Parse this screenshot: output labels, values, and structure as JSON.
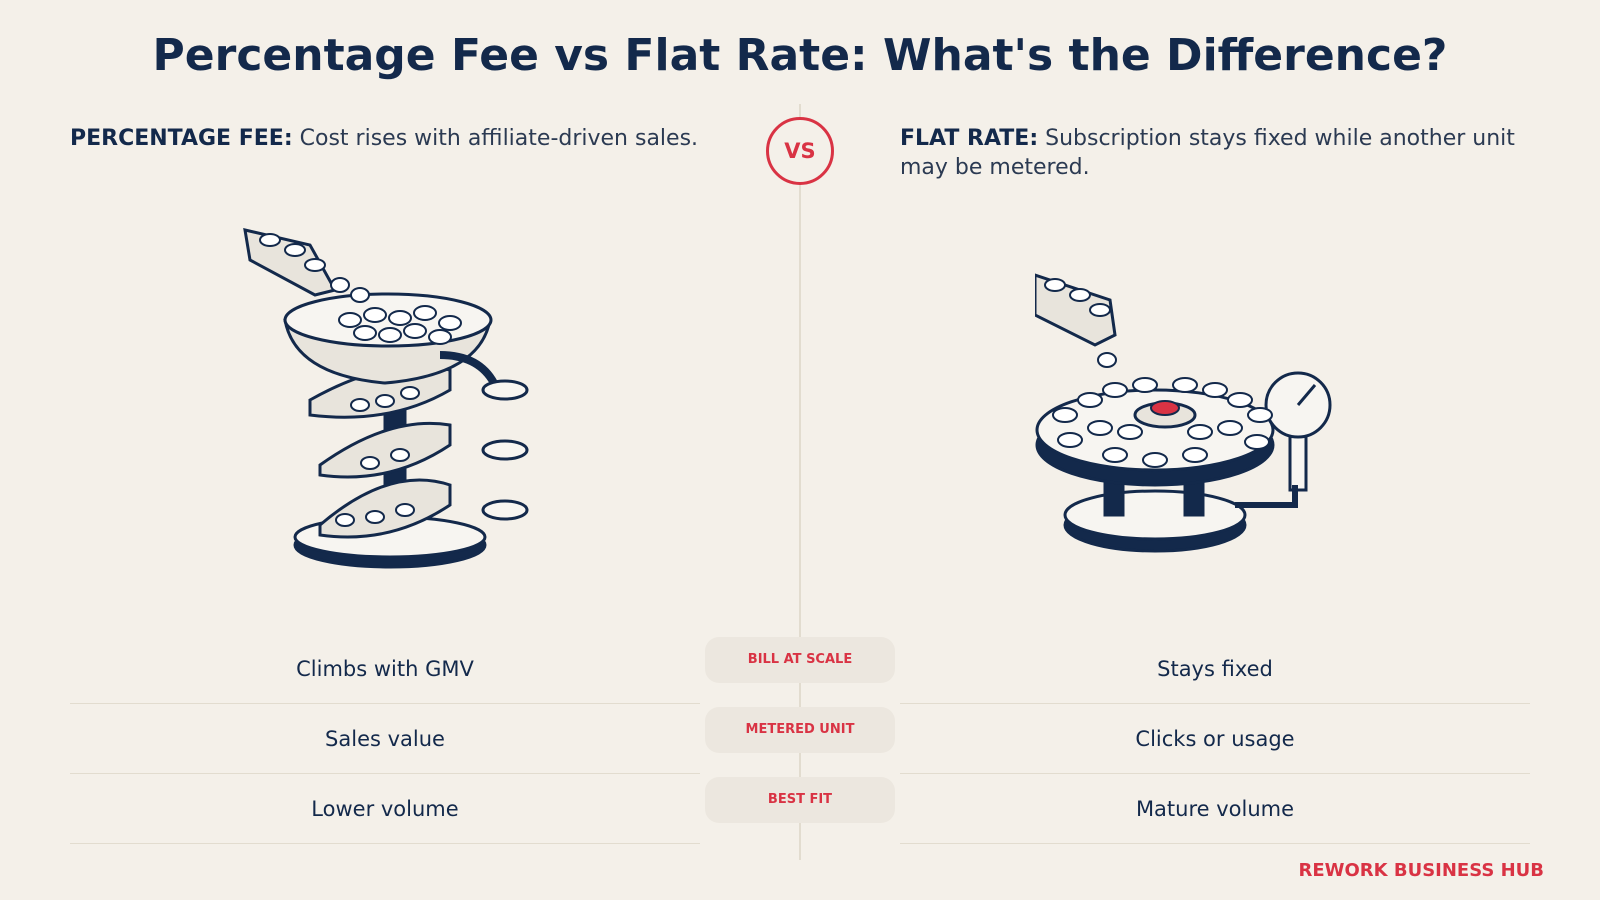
{
  "header": {
    "title": "Percentage Fee vs Flat Rate: What's the Difference?"
  },
  "vs": "VS",
  "left": {
    "label": "PERCENTAGE FEE:",
    "description": "Cost rises with affiliate-driven sales."
  },
  "right": {
    "label": "FLAT RATE:",
    "description": "Subscription stays fixed while another unit may be metered."
  },
  "rows": [
    {
      "criterion": "BILL AT SCALE",
      "left": "Climbs with GMV",
      "right": "Stays fixed"
    },
    {
      "criterion": "METERED UNIT",
      "left": "Sales value",
      "right": "Clicks or usage"
    },
    {
      "criterion": "BEST FIT",
      "left": "Lower volume",
      "right": "Mature volume"
    }
  ],
  "footer": {
    "brand": "REWORK BUSINESS HUB"
  }
}
